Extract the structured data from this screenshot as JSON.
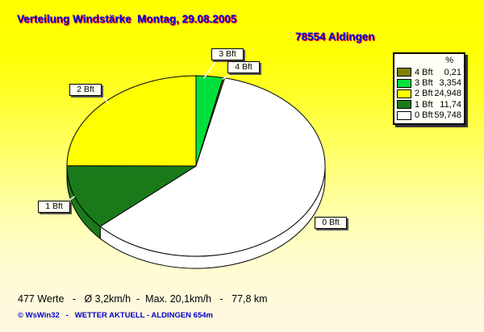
{
  "header": {
    "title": "Verteilung Windstärke  Montag, 29.08.2005",
    "station": "78554 Aldingen"
  },
  "legend": {
    "column_header": "%",
    "items": [
      {
        "label": "4 Bft",
        "value": "0,21",
        "color": "#808000"
      },
      {
        "label": "3 Bft",
        "value": "3,354",
        "color": "#00E03C"
      },
      {
        "label": "2 Bft",
        "value": "24,948",
        "color": "#FFFF00"
      },
      {
        "label": "1 Bft",
        "value": "11,74",
        "color": "#1A7A1A"
      },
      {
        "label": "0 Bft",
        "value": "59,748",
        "color": "#FFFFFF"
      }
    ]
  },
  "callouts": [
    {
      "text": "3 Bft"
    },
    {
      "text": "4 Bft"
    },
    {
      "text": "2 Bft"
    },
    {
      "text": "1 Bft"
    },
    {
      "text": "0 Bft"
    }
  ],
  "chart_data": {
    "type": "pie",
    "style": "3d",
    "title": "Verteilung Windstärke Montag, 29.08.2005",
    "unit": "%",
    "direction": "clockwise",
    "start_angle_deg": 0,
    "legend_position": "top-right",
    "slices": [
      {
        "label": "3 Bft",
        "value": 3.354,
        "color": "#00E03C"
      },
      {
        "label": "4 Bft",
        "value": 0.21,
        "color": "#808000"
      },
      {
        "label": "0 Bft",
        "value": 59.748,
        "color": "#FFFFFF"
      },
      {
        "label": "1 Bft",
        "value": 11.74,
        "color": "#1A7A1A"
      },
      {
        "label": "2 Bft",
        "value": 24.948,
        "color": "#FFFF00"
      }
    ]
  },
  "footer": {
    "stats": "477 Werte   -   Ø 3,2km/h  -  Max. 20,1km/h   -   77,8 km",
    "copyright": "© WsWin32   -   WETTER AKTUELL - ALDINGEN 654m"
  }
}
